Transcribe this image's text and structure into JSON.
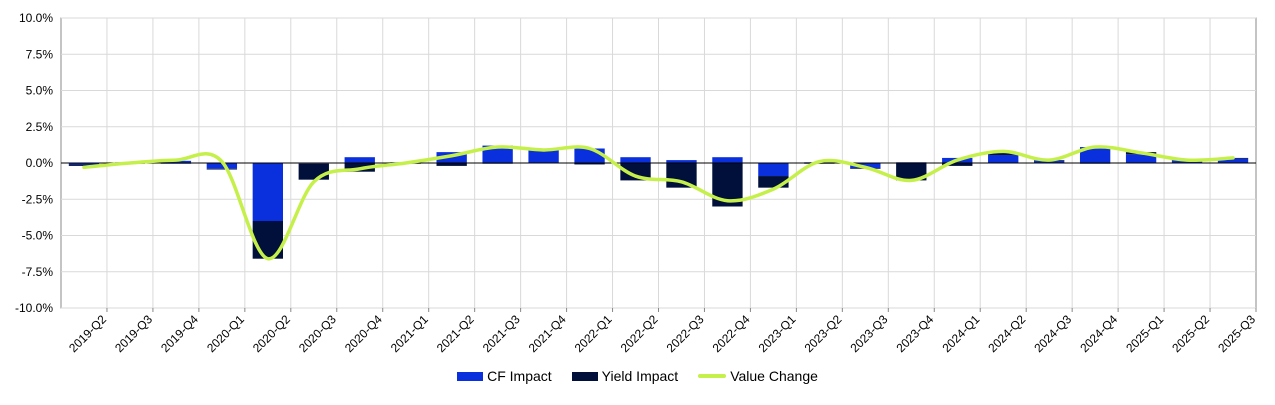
{
  "chart_data": {
    "type": "bar",
    "title": "",
    "xlabel": "",
    "ylabel": "",
    "ylim": [
      -10,
      10
    ],
    "ytick_values": [
      -10,
      -7.5,
      -5,
      -2.5,
      0,
      2.5,
      5,
      7.5,
      10
    ],
    "ytick_labels": [
      "-10.0%",
      "-7.5%",
      "-5.0%",
      "-2.5%",
      "0.0%",
      "2.5%",
      "5.0%",
      "7.5%",
      "10.0%"
    ],
    "categories": [
      "2019-Q2",
      "2019-Q3",
      "2019-Q4",
      "2020-Q1",
      "2020-Q2",
      "2020-Q3",
      "2020-Q4",
      "2021-Q1",
      "2021-Q2",
      "2021-Q3",
      "2021-Q4",
      "2022-Q1",
      "2022-Q2",
      "2022-Q3",
      "2022-Q4",
      "2023-Q1",
      "2023-Q2",
      "2023-Q3",
      "2023-Q4",
      "2024-Q1",
      "2024-Q2",
      "2024-Q3",
      "2024-Q4",
      "2025-Q1",
      "2025-Q2",
      "2025-Q3"
    ],
    "stacked": true,
    "grid": true,
    "legend_position": "bottom-center",
    "series": [
      {
        "name": "CF Impact",
        "kind": "bar",
        "color": "#0a2fdc",
        "values": [
          -0.1,
          0.05,
          0.15,
          -0.4,
          -4.0,
          -0.05,
          0.4,
          0.05,
          0.75,
          1.2,
          1.0,
          1.0,
          0.4,
          0.2,
          0.4,
          -0.9,
          0.05,
          -0.35,
          0.05,
          0.35,
          0.55,
          0.15,
          1.1,
          0.6,
          0.15,
          0.3
        ]
      },
      {
        "name": "Yield Impact",
        "kind": "bar",
        "color": "#00103a",
        "values": [
          -0.1,
          -0.05,
          -0.05,
          -0.05,
          -2.6,
          -1.1,
          -0.6,
          -0.05,
          -0.2,
          -0.05,
          0.0,
          -0.1,
          -1.2,
          -1.7,
          -3.0,
          -0.8,
          -0.05,
          -0.05,
          -1.2,
          -0.2,
          0.15,
          0.05,
          -0.05,
          0.15,
          0.05,
          0.05
        ]
      },
      {
        "name": "Value Change",
        "kind": "line",
        "color": "#c5f04a",
        "values": [
          -0.3,
          0.0,
          0.2,
          0.1,
          -6.6,
          -1.3,
          -0.4,
          0.0,
          0.5,
          1.1,
          0.9,
          1.0,
          -0.9,
          -1.3,
          -2.6,
          -1.8,
          0.1,
          -0.3,
          -1.2,
          0.2,
          0.8,
          0.2,
          1.1,
          0.7,
          0.2,
          0.35
        ]
      }
    ]
  }
}
